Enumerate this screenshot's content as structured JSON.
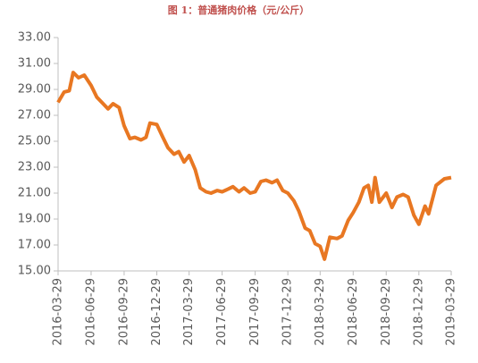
{
  "chart_data": {
    "type": "line",
    "title": "图 1：普通猪肉价格（元/公斤）",
    "x": [
      "2016-03-29",
      "2016-04-15",
      "2016-04-29",
      "2016-05-10",
      "2016-05-25",
      "2016-06-10",
      "2016-06-29",
      "2016-07-15",
      "2016-07-29",
      "2016-08-15",
      "2016-08-29",
      "2016-09-15",
      "2016-09-29",
      "2016-10-15",
      "2016-10-29",
      "2016-11-15",
      "2016-11-29",
      "2016-12-10",
      "2016-12-29",
      "2017-01-15",
      "2017-01-29",
      "2017-02-15",
      "2017-02-28",
      "2017-03-15",
      "2017-03-29",
      "2017-04-15",
      "2017-04-29",
      "2017-05-15",
      "2017-05-29",
      "2017-06-15",
      "2017-06-29",
      "2017-07-15",
      "2017-07-29",
      "2017-08-15",
      "2017-08-29",
      "2017-09-15",
      "2017-09-29",
      "2017-10-15",
      "2017-10-29",
      "2017-11-15",
      "2017-11-29",
      "2017-12-15",
      "2017-12-29",
      "2018-01-15",
      "2018-01-29",
      "2018-02-15",
      "2018-02-28",
      "2018-03-15",
      "2018-03-29",
      "2018-04-10",
      "2018-04-25",
      "2018-05-15",
      "2018-05-29",
      "2018-06-15",
      "2018-06-29",
      "2018-07-15",
      "2018-07-29",
      "2018-08-10",
      "2018-08-20",
      "2018-08-29",
      "2018-09-10",
      "2018-09-29",
      "2018-10-15",
      "2018-10-29",
      "2018-11-15",
      "2018-11-29",
      "2018-12-15",
      "2018-12-29",
      "2019-01-15",
      "2019-01-25",
      "2019-02-15",
      "2019-03-10",
      "2019-03-29"
    ],
    "series": [
      {
        "name": "普通猪肉价格",
        "color": "#e87722",
        "values": [
          28.0,
          28.8,
          28.9,
          30.3,
          29.9,
          30.1,
          29.3,
          28.4,
          28.0,
          27.5,
          27.9,
          27.6,
          26.2,
          25.2,
          25.3,
          25.1,
          25.3,
          26.4,
          26.3,
          25.3,
          24.5,
          24.0,
          24.2,
          23.4,
          23.9,
          22.8,
          21.4,
          21.1,
          21.0,
          21.2,
          21.1,
          21.3,
          21.5,
          21.1,
          21.4,
          21.0,
          21.1,
          21.9,
          22.0,
          21.8,
          22.0,
          21.2,
          21.0,
          20.4,
          19.6,
          18.3,
          18.1,
          17.1,
          16.9,
          15.9,
          17.6,
          17.5,
          17.7,
          18.9,
          19.5,
          20.3,
          21.4,
          21.6,
          20.3,
          22.2,
          20.3,
          21.0,
          19.9,
          20.7,
          20.9,
          20.7,
          19.3,
          18.6,
          20.0,
          19.4,
          21.6,
          22.1,
          22.2
        ]
      }
    ],
    "xlim": [
      "2016-03-29",
      "2019-03-29"
    ],
    "xticks": [
      "2016-03-29",
      "2016-06-29",
      "2016-09-29",
      "2016-12-29",
      "2017-03-29",
      "2017-06-29",
      "2017-09-29",
      "2017-12-29",
      "2018-03-29",
      "2018-06-29",
      "2018-09-29",
      "2018-12-29",
      "2019-03-29"
    ],
    "ylim": [
      15,
      33
    ],
    "yticks": [
      {
        "value": 15,
        "label": "15.00"
      },
      {
        "value": 17,
        "label": "17.00"
      },
      {
        "value": 19,
        "label": "19.00"
      },
      {
        "value": 21,
        "label": "21.00"
      },
      {
        "value": 23,
        "label": "23.00"
      },
      {
        "value": 25,
        "label": "25.00"
      },
      {
        "value": 27,
        "label": "27.00"
      },
      {
        "value": 29,
        "label": "29.00"
      },
      {
        "value": 31,
        "label": "31.00"
      },
      {
        "value": 33,
        "label": "33.00"
      }
    ]
  }
}
